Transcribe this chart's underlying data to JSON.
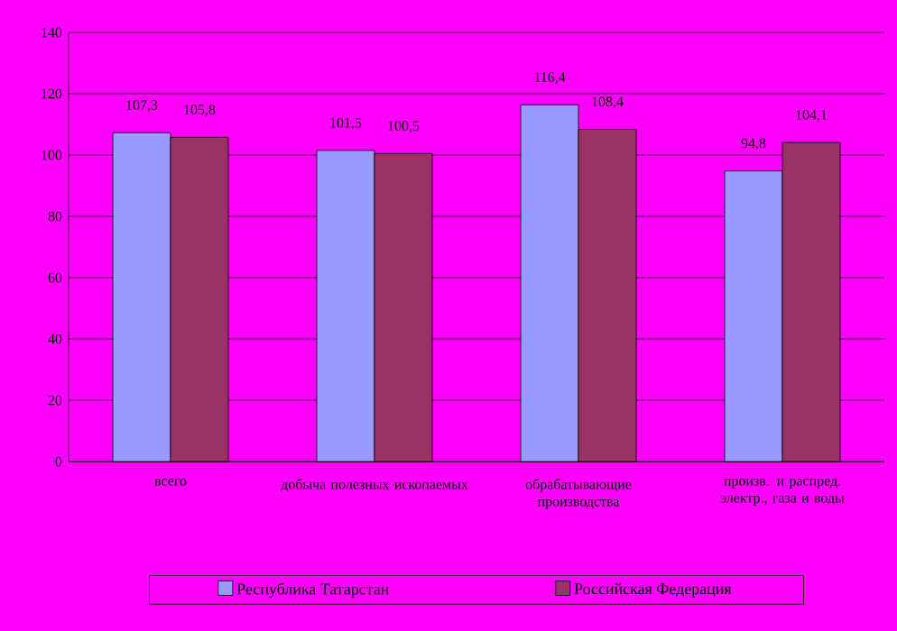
{
  "chart_data": {
    "type": "bar",
    "categories": [
      "всего",
      "добыча полезных ископаемых",
      "обрабатывающие производства",
      "произв. и распред. электр., газа и воды"
    ],
    "series": [
      {
        "name": "Республика Татарстан",
        "color": "#9999ff",
        "values": [
          107.3,
          101.5,
          116.4,
          94.8
        ],
        "value_labels": [
          "107,3",
          "101,5",
          "116,4",
          "94,8"
        ]
      },
      {
        "name": "Российская  Федерация",
        "color": "#993366",
        "values": [
          105.8,
          100.5,
          108.4,
          104.1
        ],
        "value_labels": [
          "105,8",
          "100,5",
          "108,4",
          "104,1"
        ]
      }
    ],
    "ylim": [
      0,
      140
    ],
    "yticks": [
      0,
      20,
      40,
      60,
      80,
      100,
      120,
      140
    ],
    "grid": "y",
    "legend": "bottom"
  }
}
